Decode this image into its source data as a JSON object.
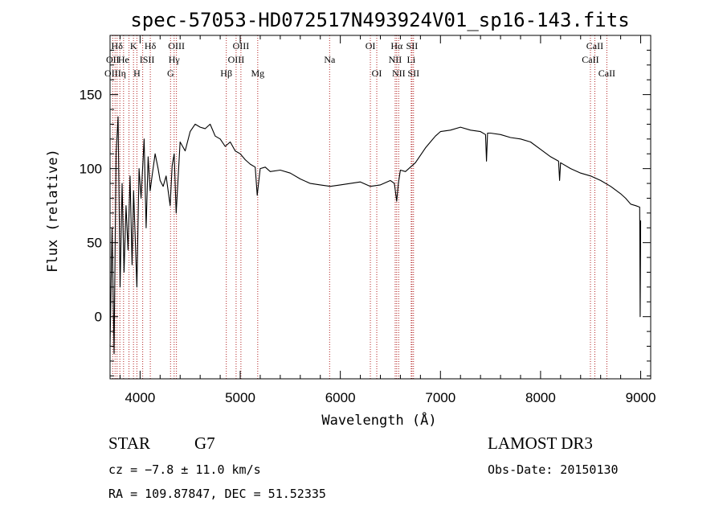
{
  "chart_data": {
    "type": "line",
    "title": "spec-57053-HD072517N493924V01_sp16-143.fits",
    "xlabel": "Wavelength (Å)",
    "ylabel": "Flux (relative)",
    "xlim": [
      3700,
      9100
    ],
    "ylim": [
      -42,
      190
    ],
    "x_ticks": [
      4000,
      5000,
      6000,
      7000,
      8000,
      9000
    ],
    "y_ticks": [
      0,
      50,
      100,
      150
    ],
    "grid": false,
    "series": [
      {
        "x": [
          3700,
          3720,
          3740,
          3760,
          3780,
          3800,
          3820,
          3840,
          3860,
          3880,
          3900,
          3920,
          3935,
          3950,
          3968,
          3990,
          4010,
          4040,
          4060,
          4080,
          4100,
          4120,
          4150,
          4180,
          4200,
          4230,
          4260,
          4300,
          4320,
          4340,
          4360,
          4400,
          4450,
          4500,
          4550,
          4600,
          4650,
          4700,
          4750,
          4800,
          4850,
          4900,
          4950,
          5000,
          5050,
          5100,
          5150,
          5170,
          5200,
          5250,
          5300,
          5400,
          5500,
          5600,
          5700,
          5800,
          5900,
          6000,
          6100,
          6200,
          6300,
          6400,
          6500,
          6540,
          6563,
          6580,
          6600,
          6650,
          6700,
          6750,
          6800,
          6850,
          6900,
          6950,
          7000,
          7100,
          7200,
          7300,
          7400,
          7450,
          7460,
          7470,
          7500,
          7600,
          7700,
          7800,
          7900,
          8000,
          8100,
          8180,
          8190,
          8200,
          8300,
          8400,
          8500,
          8600,
          8700,
          8800,
          8850,
          8900,
          8950,
          8990,
          8995,
          9000
        ],
        "values": [
          -20,
          60,
          -25,
          110,
          135,
          20,
          90,
          30,
          75,
          45,
          95,
          35,
          85,
          55,
          20,
          100,
          80,
          120,
          60,
          108,
          85,
          95,
          110,
          100,
          92,
          88,
          95,
          75,
          102,
          110,
          70,
          118,
          112,
          125,
          130,
          128,
          127,
          130,
          122,
          120,
          115,
          118,
          112,
          110,
          106,
          103,
          101,
          82,
          100,
          101,
          98,
          99,
          97,
          93,
          90,
          89,
          88,
          89,
          90,
          91,
          88,
          89,
          92,
          90,
          78,
          90,
          99,
          98,
          101,
          104,
          109,
          114,
          118,
          122,
          125,
          126,
          128,
          126,
          125,
          123,
          105,
          124,
          124,
          123,
          121,
          120,
          118,
          113,
          108,
          105,
          92,
          104,
          100,
          97,
          95,
          92,
          88,
          83,
          80,
          76,
          75,
          74,
          0,
          65
        ]
      }
    ],
    "spectral_lines": [
      {
        "label": "Hδ",
        "wavelength": 3770,
        "row": 1
      },
      {
        "label": "K",
        "wavelength": 3934,
        "row": 1
      },
      {
        "label": "Hδ",
        "wavelength": 4102,
        "row": 1
      },
      {
        "label": "OIII",
        "wavelength": 4363,
        "row": 1
      },
      {
        "label": "OIII",
        "wavelength": 5007,
        "row": 1
      },
      {
        "label": "OI",
        "wavelength": 6300,
        "row": 1
      },
      {
        "label": "Hα",
        "wavelength": 6563,
        "row": 1
      },
      {
        "label": "SII",
        "wavelength": 6716,
        "row": 1
      },
      {
        "label": "CaII",
        "wavelength": 8542,
        "row": 1
      },
      {
        "label": "OII",
        "wavelength": 3727,
        "row": 2
      },
      {
        "label": "He",
        "wavelength": 3835,
        "row": 2
      },
      {
        "label": "ISII",
        "wavelength": 4070,
        "row": 2
      },
      {
        "label": "Hγ",
        "wavelength": 4340,
        "row": 2
      },
      {
        "label": "OIII",
        "wavelength": 4959,
        "row": 2
      },
      {
        "label": "Na",
        "wavelength": 5893,
        "row": 2
      },
      {
        "label": "NII",
        "wavelength": 6548,
        "row": 2
      },
      {
        "label": "Li",
        "wavelength": 6708,
        "row": 2
      },
      {
        "label": "CaII",
        "wavelength": 8498,
        "row": 2
      },
      {
        "label": "OIII",
        "wavelength": 3727,
        "row": 3
      },
      {
        "label": "η",
        "wavelength": 3835,
        "row": 3
      },
      {
        "label": "H",
        "wavelength": 3968,
        "row": 3
      },
      {
        "label": "G",
        "wavelength": 4304,
        "row": 3
      },
      {
        "label": "Hβ",
        "wavelength": 4861,
        "row": 3
      },
      {
        "label": "Mg",
        "wavelength": 5175,
        "row": 3
      },
      {
        "label": "OI",
        "wavelength": 6364,
        "row": 3
      },
      {
        "label": "NII",
        "wavelength": 6583,
        "row": 3
      },
      {
        "label": "SII",
        "wavelength": 6731,
        "row": 3
      },
      {
        "label": "CaII",
        "wavelength": 8662,
        "row": 3
      }
    ],
    "line_marker_wavelengths": [
      3727,
      3750,
      3770,
      3798,
      3835,
      3889,
      3934,
      3968,
      4026,
      4102,
      4304,
      4340,
      4363,
      4861,
      4959,
      5007,
      5175,
      5893,
      6300,
      6364,
      6548,
      6563,
      6583,
      6708,
      6716,
      6731,
      8498,
      8542,
      8662
    ]
  },
  "info": {
    "object_class": "STAR",
    "subclass": "G7",
    "survey": "LAMOST DR3",
    "redshift": "cz = −7.8 ± 11.0 km/s",
    "obs_date": "Obs-Date: 20150130",
    "coords": "RA = 109.87847, DEC =  51.52335"
  },
  "colors": {
    "spectrum": "#000000",
    "line_marker": "#b22222"
  }
}
